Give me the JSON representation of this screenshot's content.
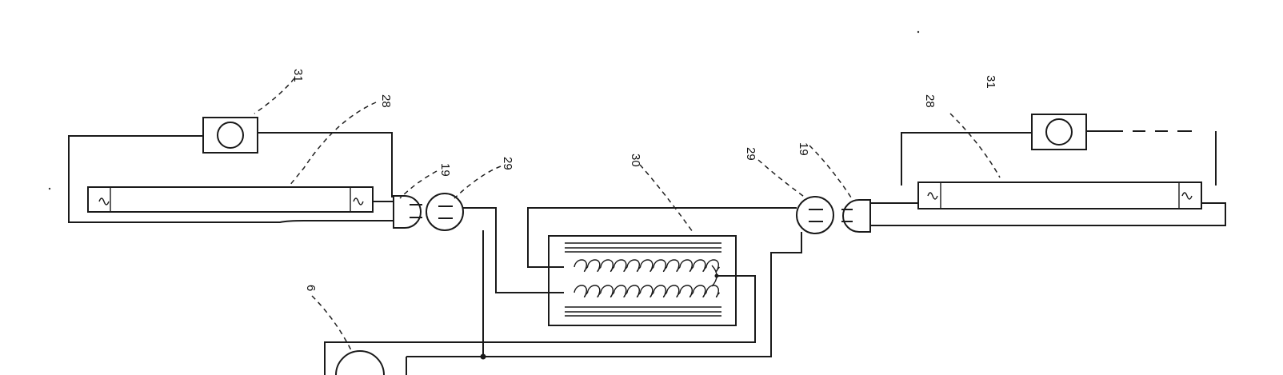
{
  "diagram": {
    "references": {
      "lamp_left": "28",
      "lamp_right": "28",
      "starter_left": "31",
      "starter_right": "31",
      "plug_left": "19",
      "plug_right": "19",
      "socket_left": "29",
      "socket_right": "29",
      "heater": "30",
      "bottom_device": "6"
    }
  }
}
